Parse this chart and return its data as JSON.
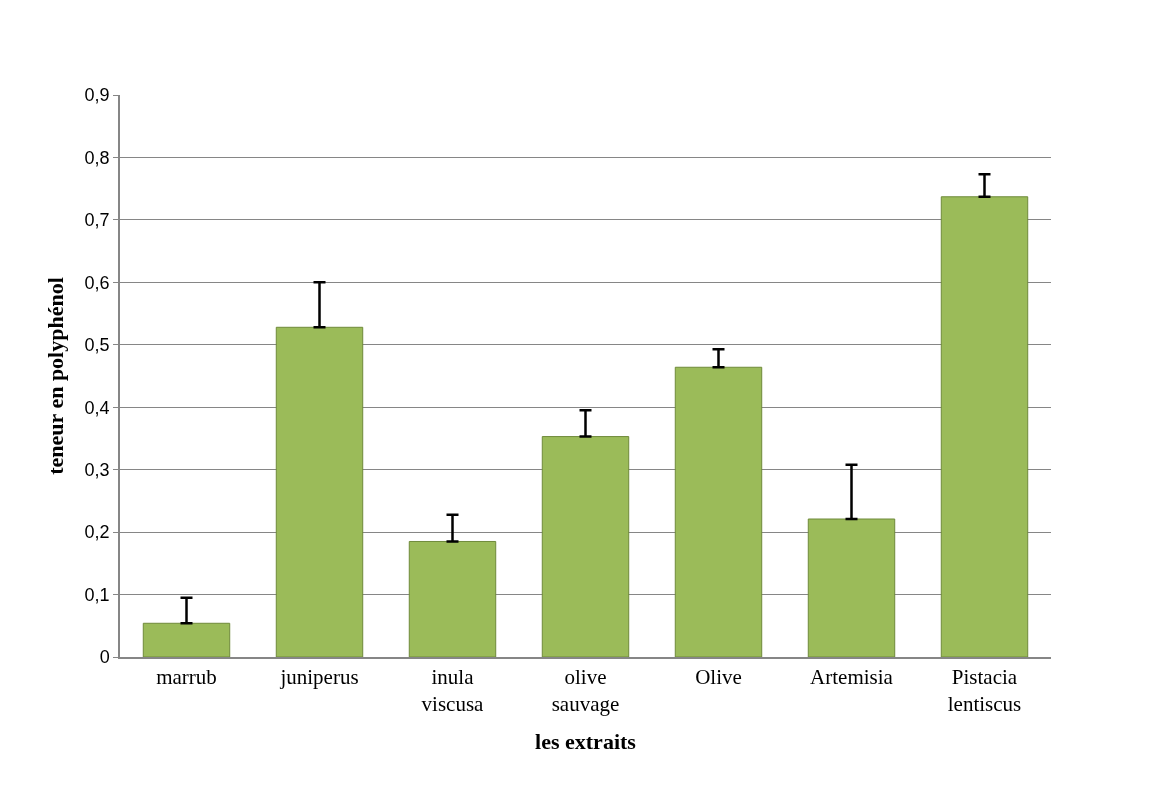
{
  "chart_data": {
    "type": "bar",
    "xlabel": "les extraits",
    "ylabel": "teneur en polyphénol",
    "categories": [
      "marrub",
      "juniperus",
      "inula viscusa",
      "olive sauvage",
      "Olive",
      "Artemisia",
      "Pistacia lentiscus"
    ],
    "values": [
      0.054,
      0.528,
      0.185,
      0.353,
      0.464,
      0.221,
      0.737
    ],
    "errors": [
      [
        0.054,
        0.095
      ],
      [
        0.528,
        0.6
      ],
      [
        0.185,
        0.228
      ],
      [
        0.353,
        0.395
      ],
      [
        0.464,
        0.493
      ],
      [
        0.221,
        0.308
      ],
      [
        0.737,
        0.773
      ]
    ],
    "color": "#9bbb59",
    "ylim": [
      0,
      0.9
    ],
    "yticks": [
      {
        "value": 0,
        "label": "0"
      },
      {
        "value": 0.1,
        "label": "0,1"
      },
      {
        "value": 0.2,
        "label": "0,2"
      },
      {
        "value": 0.3,
        "label": "0,3"
      },
      {
        "value": 0.4,
        "label": "0,4"
      },
      {
        "value": 0.5,
        "label": "0,5"
      },
      {
        "value": 0.6,
        "label": "0,6"
      },
      {
        "value": 0.7,
        "label": "0,7"
      },
      {
        "value": 0.8,
        "label": "0,8"
      },
      {
        "value": 0.9,
        "label": "0,9"
      }
    ],
    "grid": "y"
  }
}
